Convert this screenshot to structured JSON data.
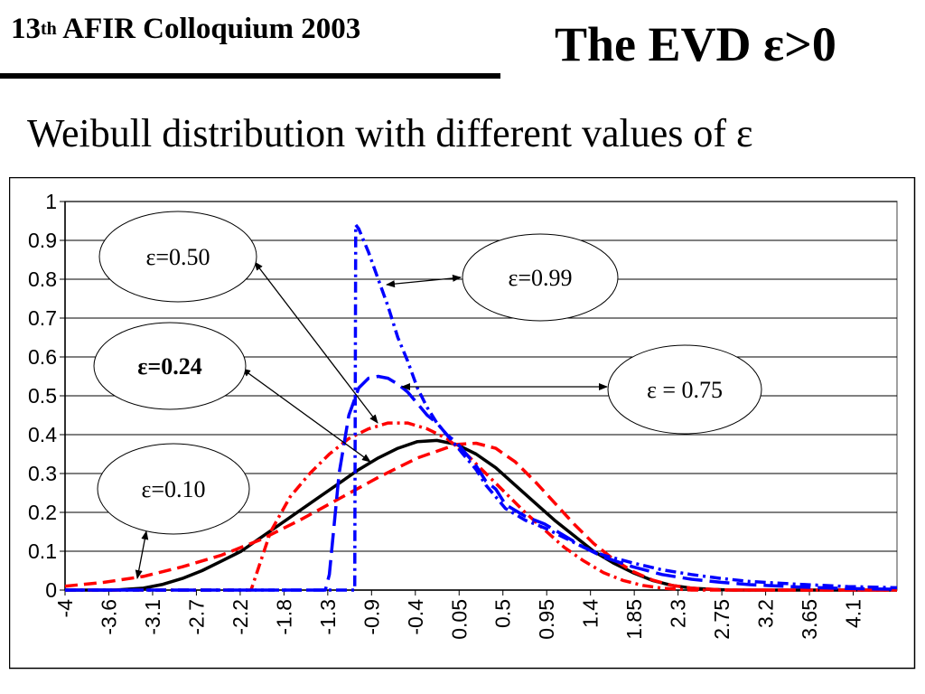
{
  "header": {
    "conference_number": "13",
    "conference_suffix": "th",
    "conference_name": "AFIR Colloquium 2003",
    "slide_title": "The  EVD ε>0",
    "subtitle": "Weibull distribution with different values of ε"
  },
  "colors": {
    "black_series": "#000000",
    "red_series": "#ff0000",
    "blue_series": "#0000ff",
    "gridline": "#000000",
    "plot_border": "#808080"
  },
  "chart_data": {
    "type": "line",
    "title": "",
    "xlabel": "",
    "ylabel": "",
    "xlim": [
      -4,
      4.5
    ],
    "ylim": [
      0,
      1
    ],
    "y_ticks": [
      "0",
      "0.1",
      "0.2",
      "0.3",
      "0.4",
      "0.5",
      "0.6",
      "0.7",
      "0.8",
      "0.9",
      "1"
    ],
    "x_tick_labels": [
      "-4",
      "-3.6",
      "-3.1",
      "-2.7",
      "-2.2",
      "-1.8",
      "-1.3",
      "-0.9",
      "-0.4",
      "0.05",
      "0.5",
      "0.95",
      "1.4",
      "1.85",
      "2.3",
      "2.75",
      "3.2",
      "3.65",
      "4.1"
    ],
    "grid": "horizontal",
    "series": [
      {
        "name": "",
        "color": "#000000",
        "style": "solid",
        "x": [
          -4,
          -3.5,
          -3.2,
          -3.0,
          -2.8,
          -2.6,
          -2.4,
          -2.2,
          -2.0,
          -1.8,
          -1.6,
          -1.4,
          -1.2,
          -1.0,
          -0.8,
          -0.6,
          -0.4,
          -0.2,
          0.0,
          0.2,
          0.4,
          0.6,
          0.8,
          1.0,
          1.2,
          1.4,
          1.6,
          1.8,
          2.0,
          2.2,
          2.4,
          2.6,
          2.8,
          3.0,
          4.5
        ],
        "y": [
          0,
          0,
          0.005,
          0.015,
          0.03,
          0.05,
          0.075,
          0.1,
          0.135,
          0.17,
          0.205,
          0.24,
          0.275,
          0.31,
          0.34,
          0.365,
          0.382,
          0.385,
          0.375,
          0.35,
          0.315,
          0.27,
          0.225,
          0.18,
          0.14,
          0.1,
          0.07,
          0.045,
          0.025,
          0.012,
          0.005,
          0.002,
          0,
          0,
          0
        ]
      },
      {
        "name": "",
        "color": "#ff0000",
        "style": "dashed",
        "x": [
          -4,
          -3.6,
          -3.2,
          -2.8,
          -2.4,
          -2.0,
          -1.6,
          -1.2,
          -0.8,
          -0.4,
          0.0,
          0.2,
          0.4,
          0.6,
          0.8,
          1.0,
          1.2,
          1.4,
          1.6,
          1.8,
          2.0,
          2.2,
          2.4,
          2.6,
          2.8,
          4.5
        ],
        "y": [
          0.01,
          0.02,
          0.035,
          0.06,
          0.09,
          0.13,
          0.18,
          0.235,
          0.29,
          0.34,
          0.375,
          0.378,
          0.365,
          0.33,
          0.28,
          0.225,
          0.17,
          0.12,
          0.08,
          0.048,
          0.026,
          0.012,
          0.005,
          0.002,
          0,
          0
        ]
      },
      {
        "name": "",
        "color": "#ff0000",
        "style": "dashdot",
        "x": [
          -4,
          -2.1,
          -1.9,
          -1.7,
          -1.5,
          -1.3,
          -1.1,
          -0.9,
          -0.7,
          -0.5,
          -0.3,
          -0.1,
          0.1,
          0.3,
          0.5,
          0.7,
          0.9,
          1.1,
          1.3,
          1.5,
          1.7,
          1.9,
          2.1,
          2.4,
          4.5
        ],
        "y": [
          0,
          0,
          0.15,
          0.24,
          0.3,
          0.35,
          0.39,
          0.415,
          0.43,
          0.43,
          0.415,
          0.39,
          0.35,
          0.3,
          0.25,
          0.2,
          0.155,
          0.11,
          0.075,
          0.045,
          0.025,
          0.012,
          0.005,
          0,
          0
        ]
      },
      {
        "name": "",
        "color": "#0000ff",
        "style": "longdash",
        "x": [
          -4,
          -1.34,
          -1.3,
          -1.2,
          -1.1,
          -1.0,
          -0.9,
          -0.8,
          -0.7,
          -0.6,
          -0.5,
          -0.4,
          -0.3,
          -0.2,
          -0.1,
          0.0,
          0.1,
          0.2,
          0.3,
          0.4,
          0.5,
          0.7,
          0.9,
          1.1,
          1.3,
          1.5,
          1.8,
          2.1,
          2.4,
          2.7,
          3.0,
          3.5,
          4.0,
          4.5
        ],
        "y": [
          0,
          0,
          0.04,
          0.3,
          0.45,
          0.52,
          0.545,
          0.55,
          0.545,
          0.53,
          0.51,
          0.48,
          0.45,
          0.43,
          0.4,
          0.38,
          0.35,
          0.32,
          0.28,
          0.26,
          0.22,
          0.19,
          0.17,
          0.14,
          0.11,
          0.085,
          0.06,
          0.04,
          0.028,
          0.02,
          0.014,
          0.008,
          0.004,
          0.002
        ]
      },
      {
        "name": "",
        "color": "#0000ff",
        "style": "dashdot",
        "x": [
          -4,
          -1.04,
          -1.03,
          -1.0,
          -0.9,
          -0.8,
          -0.7,
          -0.6,
          -0.5,
          -0.4,
          -0.3,
          -0.2,
          -0.1,
          0.0,
          0.1,
          0.2,
          0.3,
          0.4,
          0.5,
          0.7,
          0.9,
          1.1,
          1.3,
          1.5,
          1.8,
          2.1,
          2.4,
          2.7,
          3.0,
          3.5,
          4.0,
          4.5
        ],
        "y": [
          0,
          0,
          0.94,
          0.93,
          0.87,
          0.8,
          0.73,
          0.65,
          0.59,
          0.52,
          0.47,
          0.43,
          0.4,
          0.37,
          0.34,
          0.31,
          0.27,
          0.24,
          0.21,
          0.18,
          0.16,
          0.135,
          0.11,
          0.09,
          0.07,
          0.052,
          0.04,
          0.03,
          0.022,
          0.015,
          0.009,
          0.006
        ]
      }
    ],
    "annotations": [
      {
        "label": "ε=0.50",
        "bold": false
      },
      {
        "label": "ε=0.99",
        "bold": false
      },
      {
        "label": "ε=0.24",
        "bold": true
      },
      {
        "label": "ε = 0.75",
        "bold": false
      },
      {
        "label": "ε=0.10",
        "bold": false
      }
    ]
  }
}
